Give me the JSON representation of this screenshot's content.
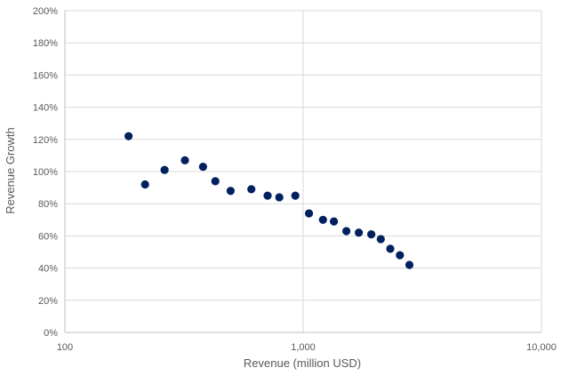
{
  "chart_data": {
    "type": "scatter",
    "title": "",
    "xlabel": "Revenue (million USD)",
    "ylabel": "Revenue Growth",
    "x_scale": "log",
    "xlim": [
      100,
      10000
    ],
    "ylim": [
      0,
      2.0
    ],
    "x_ticks": [
      100,
      1000,
      10000
    ],
    "x_tick_labels": [
      "100",
      "1,000",
      "10,000"
    ],
    "y_ticks": [
      0,
      0.2,
      0.4,
      0.6,
      0.8,
      1.0,
      1.2,
      1.4,
      1.6,
      1.8,
      2.0
    ],
    "y_tick_labels": [
      "0%",
      "20%",
      "40%",
      "60%",
      "80%",
      "100%",
      "120%",
      "140%",
      "160%",
      "180%",
      "200%"
    ],
    "grid": true,
    "legend": "none",
    "marker_color": "#002060",
    "points": [
      {
        "x": 185,
        "y": 1.22
      },
      {
        "x": 217,
        "y": 0.92
      },
      {
        "x": 262,
        "y": 1.01
      },
      {
        "x": 319,
        "y": 1.07
      },
      {
        "x": 380,
        "y": 1.03
      },
      {
        "x": 428,
        "y": 0.94
      },
      {
        "x": 496,
        "y": 0.88
      },
      {
        "x": 606,
        "y": 0.89
      },
      {
        "x": 709,
        "y": 0.85
      },
      {
        "x": 794,
        "y": 0.84
      },
      {
        "x": 927,
        "y": 0.85
      },
      {
        "x": 1058,
        "y": 0.74
      },
      {
        "x": 1211,
        "y": 0.7
      },
      {
        "x": 1346,
        "y": 0.69
      },
      {
        "x": 1518,
        "y": 0.63
      },
      {
        "x": 1712,
        "y": 0.62
      },
      {
        "x": 1931,
        "y": 0.61
      },
      {
        "x": 2117,
        "y": 0.58
      },
      {
        "x": 2321,
        "y": 0.52
      },
      {
        "x": 2547,
        "y": 0.48
      },
      {
        "x": 2792,
        "y": 0.42
      }
    ]
  }
}
